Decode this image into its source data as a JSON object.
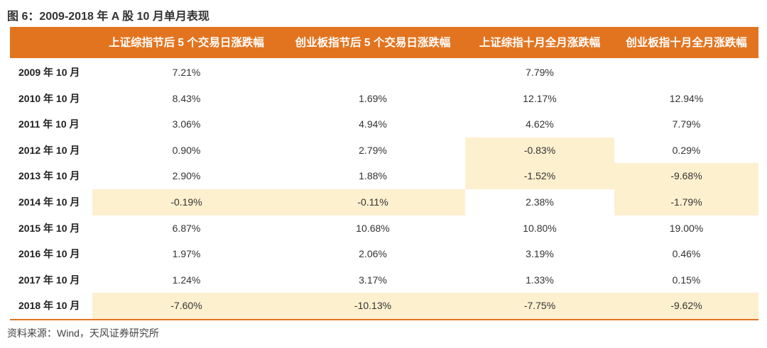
{
  "title": "图 6：2009-2018 年 A 股 10 月单月表现",
  "table": {
    "header": [
      "上证综指节后 5 个交易日涨跌幅",
      "创业板指节后 5 个交易日涨跌幅",
      "上证综指十月全月涨跌幅",
      "创业板指十月全月涨跌幅"
    ],
    "rows": [
      [
        "2009 年 10 月",
        "7.21%",
        null,
        "7.79%",
        null
      ],
      [
        "2010 年 10 月",
        "8.43%",
        "1.69%",
        "12.17%",
        "12.94%"
      ],
      [
        "2011 年 10 月",
        "3.06%",
        "4.94%",
        "4.62%",
        "7.79%"
      ],
      [
        "2012 年 10 月",
        "0.90%",
        "2.79%",
        "-0.83%",
        "0.29%"
      ],
      [
        "2013 年 10 月",
        "2.90%",
        "1.88%",
        "-1.52%",
        "-9.68%"
      ],
      [
        "2014 年 10 月",
        "-0.19%",
        "-0.11%",
        "2.38%",
        "-1.79%"
      ],
      [
        "2015 年 10 月",
        "6.87%",
        "10.68%",
        "10.80%",
        "19.00%"
      ],
      [
        "2016 年 10 月",
        "1.97%",
        "2.06%",
        "3.19%",
        "0.46%"
      ],
      [
        "2017 年 10 月",
        "1.24%",
        "3.17%",
        "1.33%",
        "0.15%"
      ],
      [
        "2018 年 10 月",
        "-7.60%",
        "-10.13%",
        "-7.75%",
        "-9.62%"
      ]
    ]
  },
  "source": "资料来源：Wind，天风证券研究所"
}
